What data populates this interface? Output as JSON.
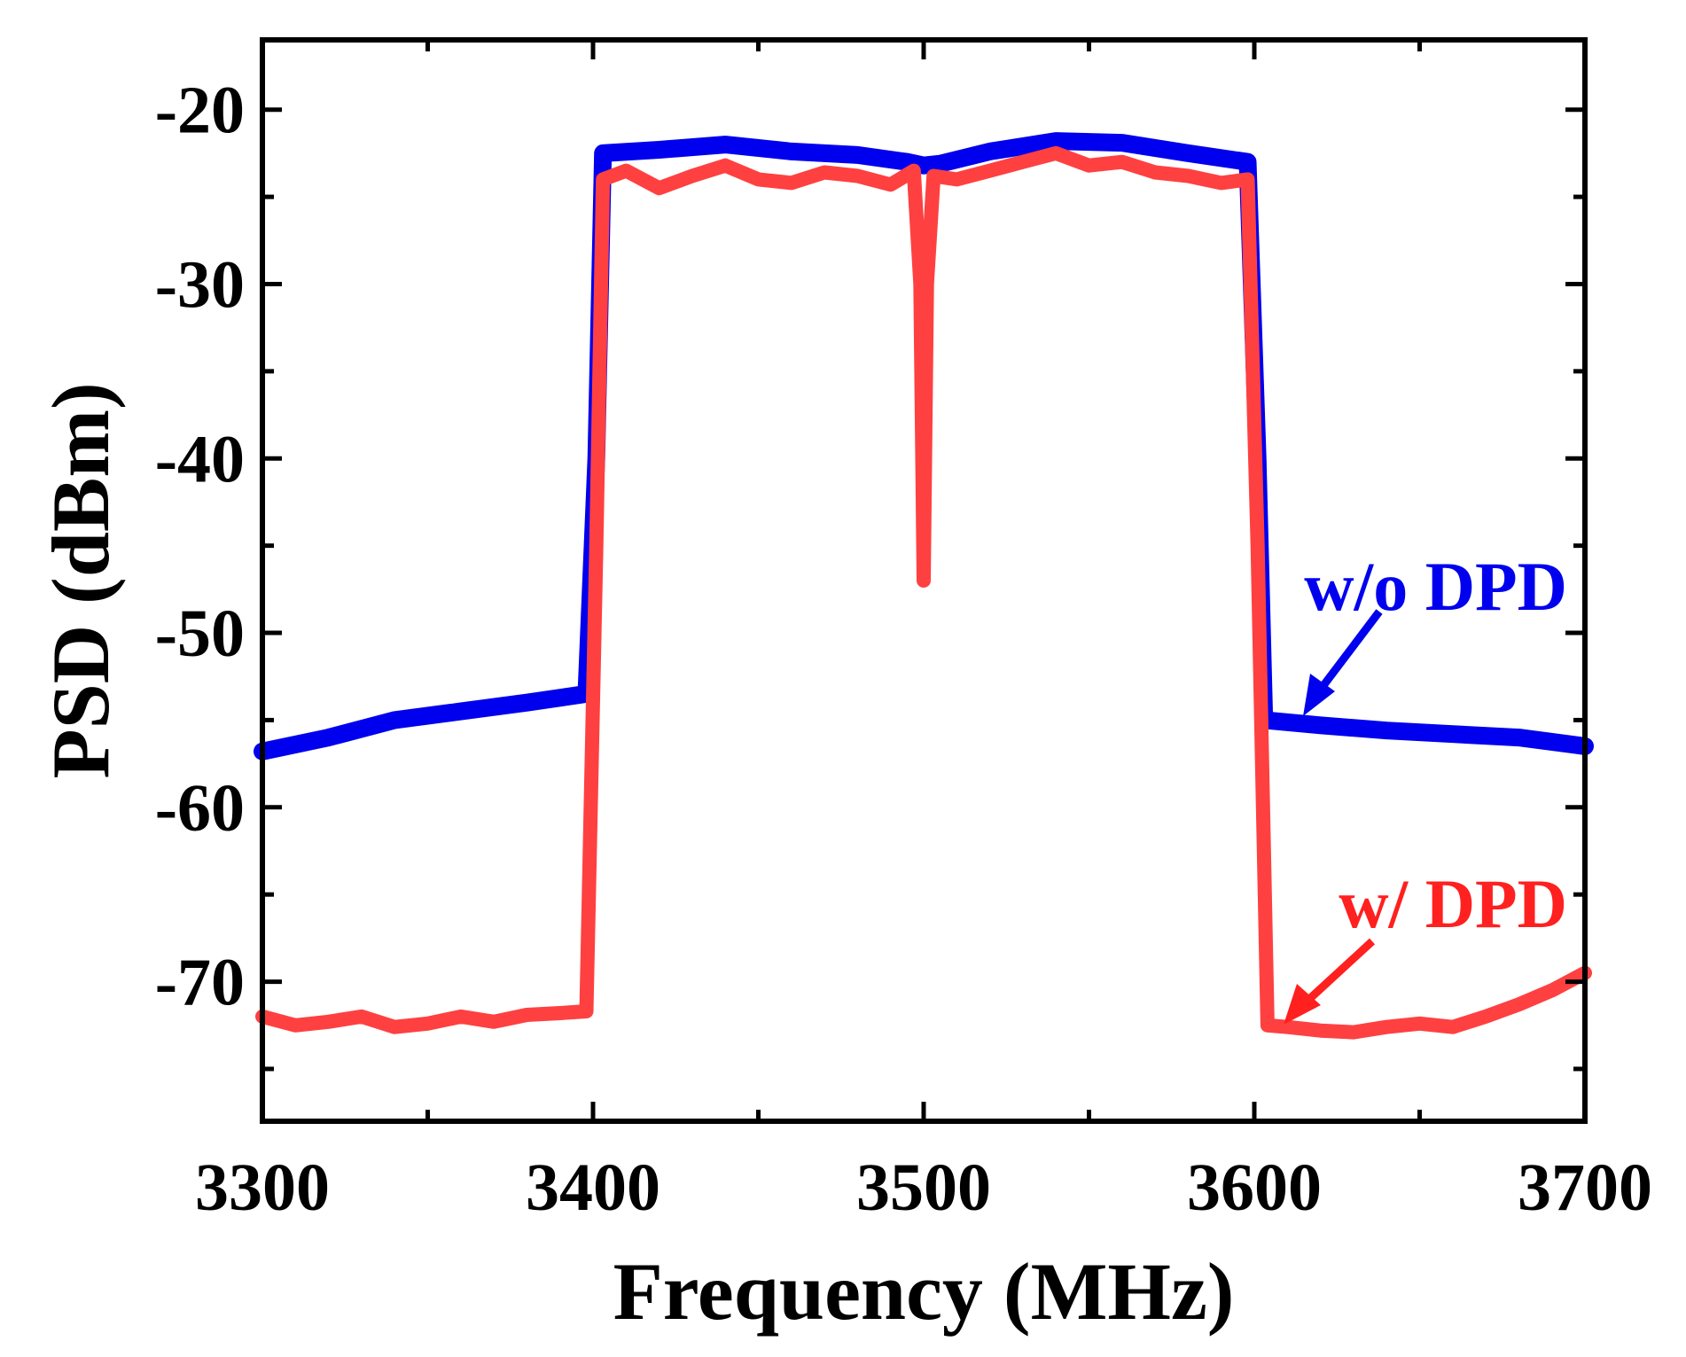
{
  "chart_data": {
    "type": "line",
    "title": "",
    "xlabel": "Frequency (MHz)",
    "ylabel": "PSD (dBm)",
    "xlim": [
      3300,
      3700
    ],
    "ylim": [
      -78,
      -16
    ],
    "x_ticks": [
      3300,
      3400,
      3500,
      3600,
      3700
    ],
    "y_ticks": [
      -20,
      -30,
      -40,
      -50,
      -60,
      -70
    ],
    "x_minor_step": 50,
    "y_minor_step": 5,
    "grid": false,
    "series": [
      {
        "name": "w/o DPD",
        "color": "#0000ee",
        "x": [
          3300,
          3320,
          3340,
          3360,
          3380,
          3398,
          3401,
          3403,
          3420,
          3440,
          3460,
          3480,
          3495,
          3500,
          3505,
          3520,
          3540,
          3560,
          3580,
          3598,
          3601,
          3603,
          3620,
          3640,
          3660,
          3680,
          3700
        ],
        "y": [
          -56.8,
          -56.0,
          -55.0,
          -54.5,
          -54.0,
          -53.5,
          -40,
          -22.5,
          -22.3,
          -22.0,
          -22.4,
          -22.6,
          -23.0,
          -23.2,
          -23.1,
          -22.4,
          -21.8,
          -21.9,
          -22.5,
          -23.0,
          -40,
          -55.0,
          -55.3,
          -55.6,
          -55.8,
          -56.0,
          -56.5
        ]
      },
      {
        "name": "w/ DPD",
        "color": "#ff4040",
        "x": [
          3300,
          3310,
          3320,
          3330,
          3340,
          3350,
          3360,
          3370,
          3380,
          3390,
          3398,
          3401,
          3403,
          3410,
          3420,
          3430,
          3440,
          3450,
          3460,
          3470,
          3480,
          3490,
          3497,
          3499,
          3500,
          3501,
          3503,
          3510,
          3520,
          3530,
          3540,
          3550,
          3560,
          3570,
          3580,
          3590,
          3598,
          3601,
          3604,
          3610,
          3620,
          3630,
          3640,
          3650,
          3660,
          3670,
          3680,
          3690,
          3700
        ],
        "y": [
          -72.0,
          -72.5,
          -72.3,
          -72.0,
          -72.6,
          -72.4,
          -72.0,
          -72.3,
          -71.9,
          -71.8,
          -71.7,
          -45,
          -24.0,
          -23.5,
          -24.5,
          -23.8,
          -23.2,
          -24.0,
          -24.2,
          -23.6,
          -23.8,
          -24.3,
          -23.5,
          -30,
          -47,
          -30,
          -23.8,
          -24.0,
          -23.5,
          -23.0,
          -22.5,
          -23.2,
          -23.0,
          -23.6,
          -23.8,
          -24.2,
          -24.0,
          -45,
          -72.5,
          -72.6,
          -72.8,
          -72.9,
          -72.6,
          -72.4,
          -72.6,
          -72.0,
          -71.3,
          -70.5,
          -69.5
        ]
      }
    ],
    "annotations": [
      {
        "text": "w/o DPD",
        "color": "#0000ee"
      },
      {
        "text": "w/ DPD",
        "color": "#ff2020"
      }
    ]
  }
}
